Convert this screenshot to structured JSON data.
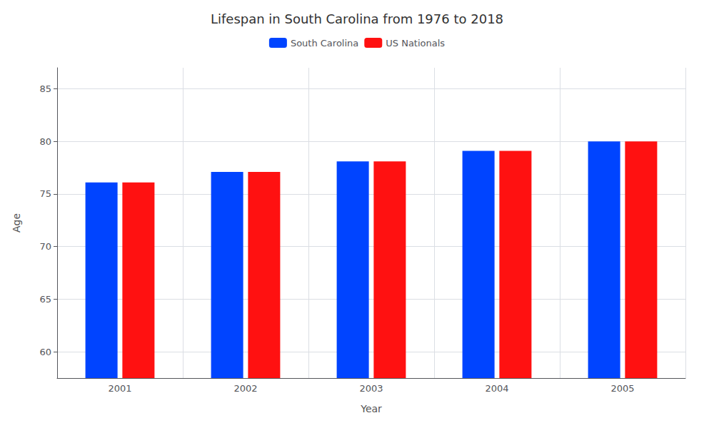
{
  "chart_data": {
    "type": "bar",
    "title": "Lifespan in South Carolina from 1976 to 2018",
    "x_label": "Year",
    "y_label": "Age",
    "categories": [
      "2001",
      "2002",
      "2003",
      "2004",
      "2005"
    ],
    "series": [
      {
        "name": "South Carolina",
        "color": "#0044ff",
        "values": [
          76.1,
          77.1,
          78.1,
          79.1,
          80.0
        ]
      },
      {
        "name": "US Nationals",
        "color": "#ff1111",
        "values": [
          76.1,
          77.1,
          78.1,
          79.1,
          80.0
        ]
      }
    ],
    "ylim": [
      57.5,
      87
    ],
    "yticks": [
      60,
      65,
      70,
      75,
      80,
      85
    ],
    "grid": true,
    "legend": "top"
  }
}
